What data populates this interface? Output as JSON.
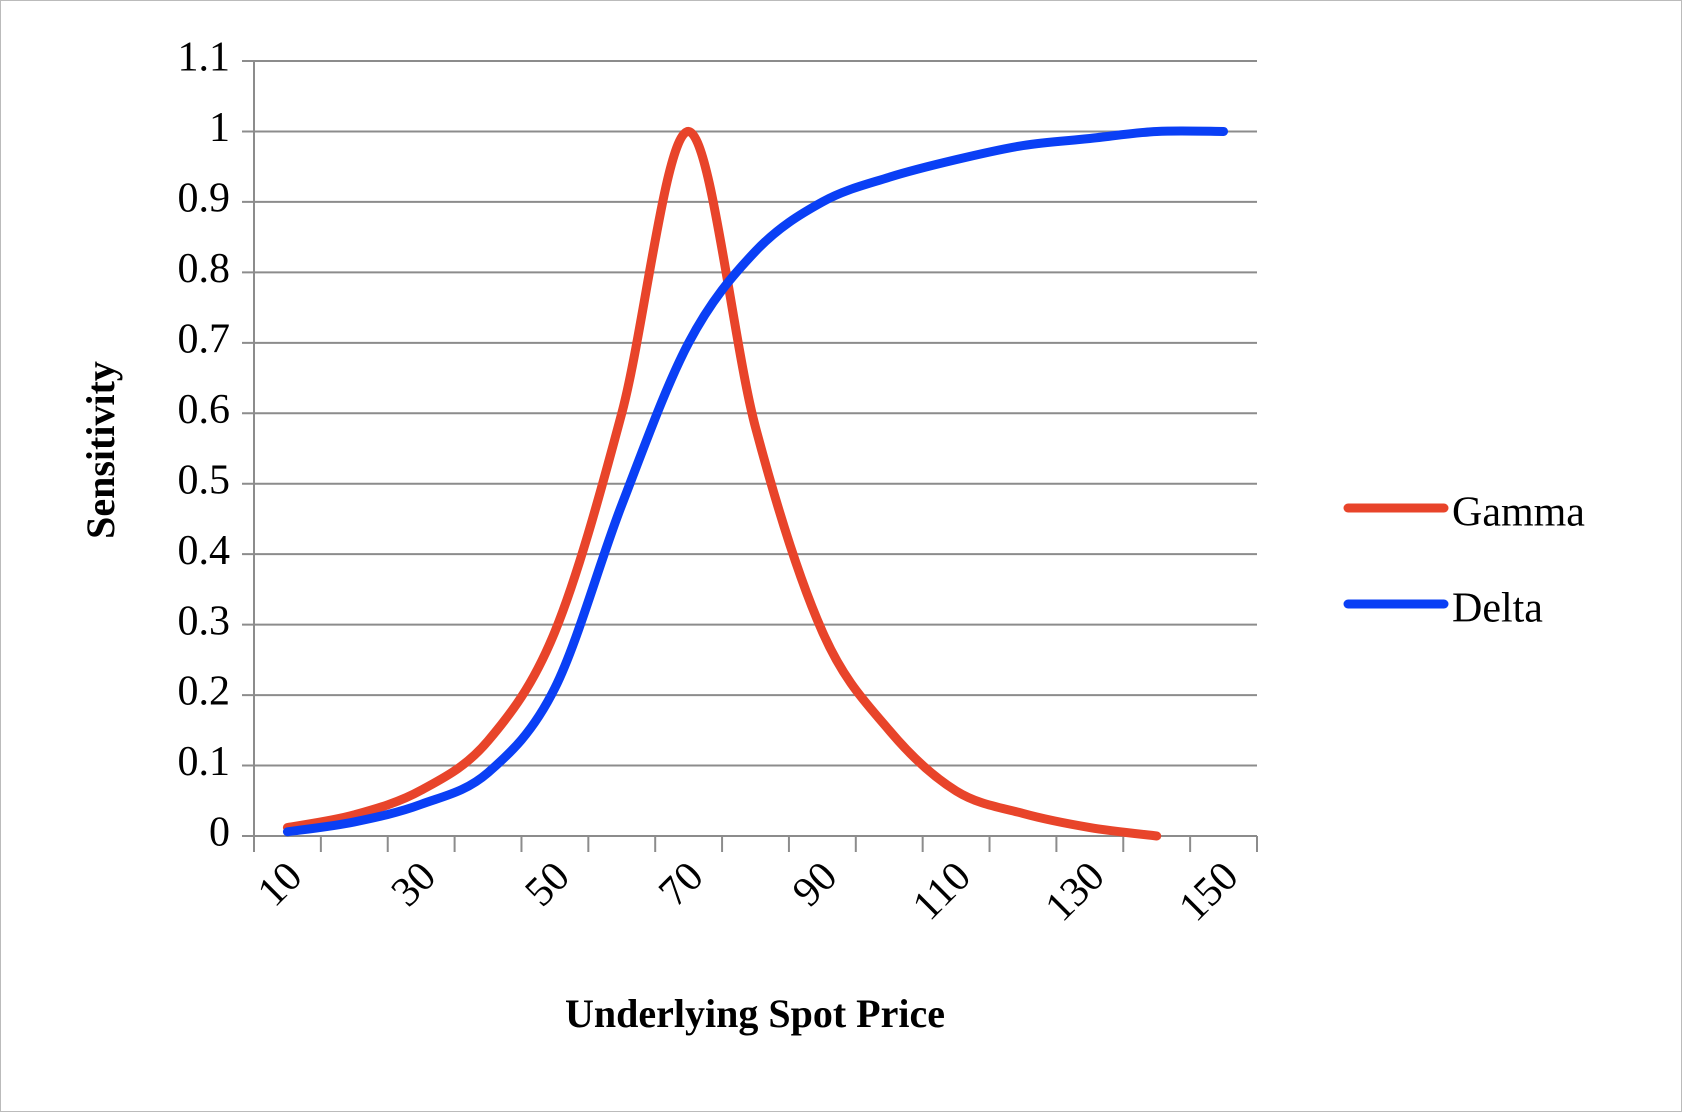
{
  "chart_data": {
    "type": "line",
    "x_label": "Underlying Spot Price",
    "y_label": "Sensitivity",
    "categories": [
      10,
      null,
      30,
      null,
      50,
      null,
      70,
      null,
      90,
      null,
      110,
      null,
      130,
      null,
      150
    ],
    "series": [
      {
        "name": "Gamma",
        "color": "#e8442a",
        "values": [
          0.012,
          0.03,
          0.065,
          0.135,
          0.29,
          0.6,
          1.0,
          0.58,
          0.29,
          0.15,
          0.064,
          0.032,
          0.012,
          0.0,
          null
        ]
      },
      {
        "name": "Delta",
        "color": "#0a3ff5",
        "values": [
          0.006,
          0.02,
          0.045,
          0.09,
          0.21,
          0.47,
          0.7,
          0.83,
          0.9,
          0.935,
          0.96,
          0.98,
          0.99,
          1.0,
          1.0
        ]
      }
    ],
    "ylim": [
      0,
      1.1
    ],
    "yticks": [
      0,
      0.1,
      0.2,
      0.3,
      0.4,
      0.5,
      0.6,
      0.7,
      0.8,
      0.9,
      1,
      1.1
    ],
    "grid": true,
    "legend": "right"
  }
}
